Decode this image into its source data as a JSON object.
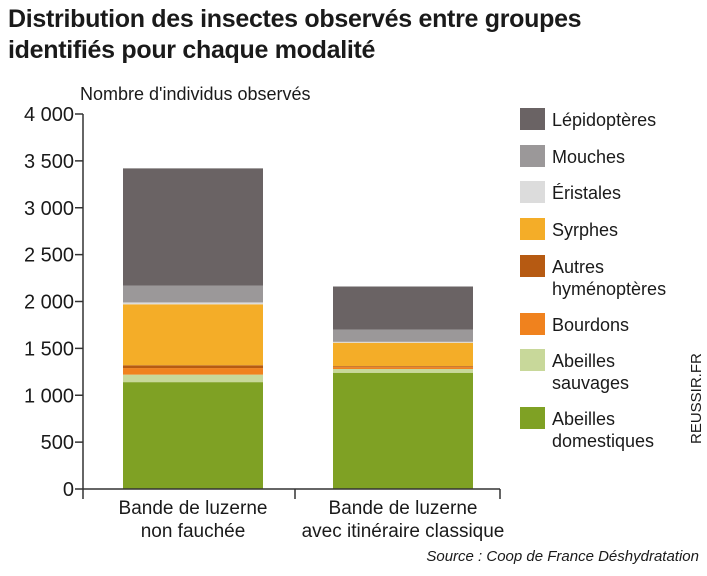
{
  "title_lines": [
    "Distribution des insectes observés entre groupes",
    "identifiés pour chaque modalité"
  ],
  "source": "Source : Coop de France Déshydratation",
  "credit": "REUSSIR.FR",
  "chart_data": {
    "type": "bar",
    "stacked": true,
    "title": "Distribution des insectes observés entre groupes identifiés pour chaque modalité",
    "ylabel": "Nombre d'individus observés",
    "xlabel": "",
    "ylim": [
      0,
      4000
    ],
    "yticks": [
      0,
      500,
      1000,
      1500,
      2000,
      2500,
      3000,
      3500,
      4000
    ],
    "ytick_labels": [
      "0",
      "500",
      "1 000",
      "1 500",
      "2 000",
      "2 500",
      "3 000",
      "3 500",
      "4 000"
    ],
    "categories": [
      [
        "Bande de luzerne",
        "non fauchée"
      ],
      [
        "Bande de luzerne",
        "avec itinéraire classique"
      ]
    ],
    "legend_position": "right",
    "series": [
      {
        "name": "Abeilles domestiques",
        "legend_lines": [
          "Abeilles",
          "domestiques"
        ],
        "color": "#7fa124",
        "values": [
          1140,
          1240
        ]
      },
      {
        "name": "Abeilles sauvages",
        "legend_lines": [
          "Abeilles",
          "sauvages"
        ],
        "color": "#c8d89a",
        "values": [
          80,
          40
        ]
      },
      {
        "name": "Bourdons",
        "legend_lines": [
          "Bourdons"
        ],
        "color": "#f0821e",
        "values": [
          70,
          20
        ]
      },
      {
        "name": "Autres hyménoptères",
        "legend_lines": [
          "Autres",
          "hyménoptères"
        ],
        "color": "#b65a12",
        "values": [
          30,
          10
        ]
      },
      {
        "name": "Syrphes",
        "legend_lines": [
          "Syrphes"
        ],
        "color": "#f4ad28",
        "values": [
          650,
          250
        ]
      },
      {
        "name": "Éristales",
        "legend_lines": [
          "Éristales"
        ],
        "color": "#dcdcdc",
        "values": [
          20,
          10
        ]
      },
      {
        "name": "Mouches",
        "legend_lines": [
          "Mouches"
        ],
        "color": "#9b9899",
        "values": [
          180,
          130
        ]
      },
      {
        "name": "Lépidoptères",
        "legend_lines": [
          "Lépidoptères"
        ],
        "color": "#6a6364",
        "values": [
          1250,
          460
        ]
      }
    ]
  }
}
